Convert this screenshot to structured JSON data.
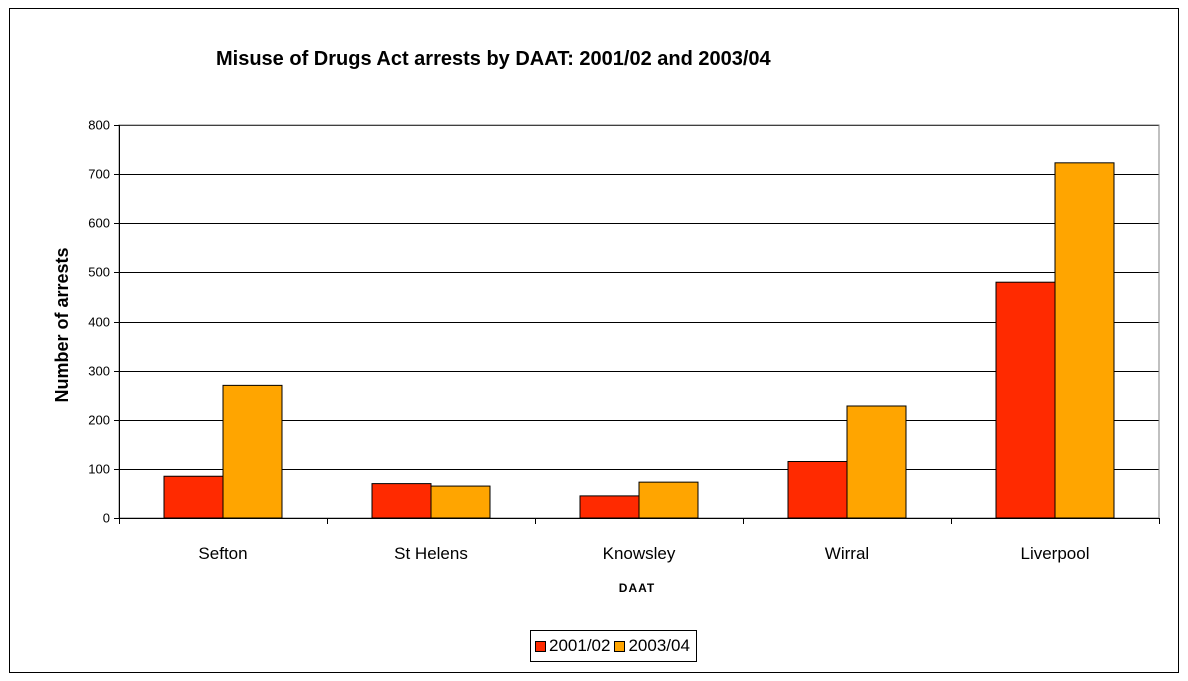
{
  "chart_data": {
    "type": "bar",
    "title": "Misuse of Drugs Act arrests by DAAT: 2001/02 and 2003/04",
    "xlabel": "DAAT",
    "ylabel": "Number of arrests",
    "categories": [
      "Sefton",
      "St Helens",
      "Knowsley",
      "Wirral",
      "Liverpool"
    ],
    "series": [
      {
        "name": "2001/02",
        "color": "#ff2a00",
        "values": [
          85,
          70,
          45,
          115,
          480
        ]
      },
      {
        "name": "2003/04",
        "color": "#ffa500",
        "values": [
          270,
          65,
          73,
          228,
          723
        ]
      }
    ],
    "ylim": [
      0,
      800
    ],
    "yticks": [
      "0",
      "100",
      "200",
      "300",
      "400",
      "500",
      "600",
      "700",
      "800"
    ],
    "grid": true,
    "legend_position": "bottom"
  }
}
